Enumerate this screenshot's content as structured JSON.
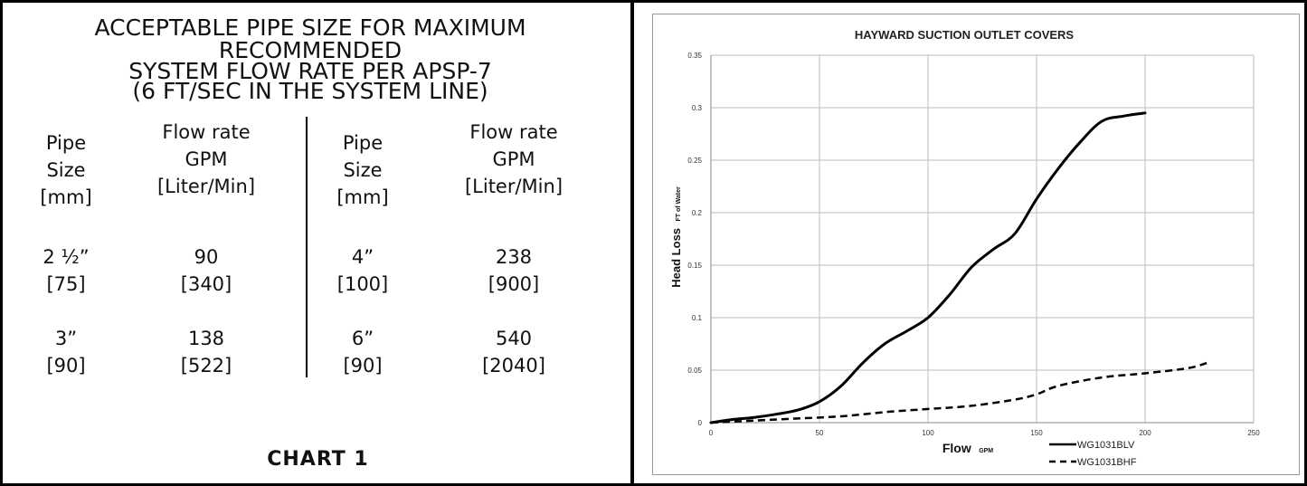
{
  "left_panel": {
    "title_lines": [
      "ACCEPTABLE PIPE SIZE FOR MAXIMUM",
      "RECOMMENDED",
      "SYSTEM FLOW RATE PER APSP-7",
      "(6 FT/SEC IN THE SYSTEM LINE)"
    ],
    "headers": {
      "pipe": [
        "Pipe",
        "Size",
        "[mm]"
      ],
      "flow": [
        "Flow rate",
        "GPM",
        "[Liter/Min]"
      ]
    },
    "rows": [
      {
        "size_in": "2 ½”",
        "size_mm": "[75]",
        "gpm": "90",
        "lpm": "[340]"
      },
      {
        "size_in": "3”",
        "size_mm": "[90]",
        "gpm": "138",
        "lpm": "[522]"
      },
      {
        "size_in": "4”",
        "size_mm": "[100]",
        "gpm": "238",
        "lpm": "[900]"
      },
      {
        "size_in": "6”",
        "size_mm": "[90]",
        "gpm": "540",
        "lpm": "[2040]"
      }
    ],
    "chart_caption": "CHART 1"
  },
  "chart_data": {
    "type": "line",
    "title": "HAYWARD SUCTION OUTLET COVERS",
    "xlabel": "Flow",
    "xlabel_unit": "GPM",
    "ylabel": "Head Loss",
    "ylabel_unit": "FT of Water",
    "xlim": [
      0,
      250
    ],
    "ylim": [
      0,
      0.35
    ],
    "xticks": [
      0,
      50,
      100,
      150,
      200,
      250
    ],
    "yticks": [
      0,
      0.05,
      0.1,
      0.15,
      0.2,
      0.25,
      0.3,
      0.35
    ],
    "grid": true,
    "legend_position": "bottom-right",
    "series": [
      {
        "name": "WG1031BLV",
        "style": "solid",
        "color": "#000000",
        "x": [
          0,
          10,
          20,
          30,
          40,
          50,
          60,
          70,
          80,
          90,
          100,
          110,
          120,
          130,
          140,
          150,
          160,
          170,
          180,
          190,
          200
        ],
        "y": [
          0,
          0.003,
          0.005,
          0.008,
          0.012,
          0.02,
          0.035,
          0.057,
          0.075,
          0.087,
          0.1,
          0.122,
          0.148,
          0.165,
          0.18,
          0.213,
          0.242,
          0.267,
          0.287,
          0.292,
          0.295
        ]
      },
      {
        "name": "WG1031BHF",
        "style": "dashed",
        "color": "#000000",
        "x": [
          0,
          20,
          40,
          60,
          80,
          100,
          120,
          140,
          150,
          160,
          180,
          200,
          220,
          230
        ],
        "y": [
          0,
          0.002,
          0.004,
          0.006,
          0.01,
          0.013,
          0.016,
          0.022,
          0.027,
          0.035,
          0.043,
          0.047,
          0.052,
          0.058
        ]
      }
    ]
  }
}
